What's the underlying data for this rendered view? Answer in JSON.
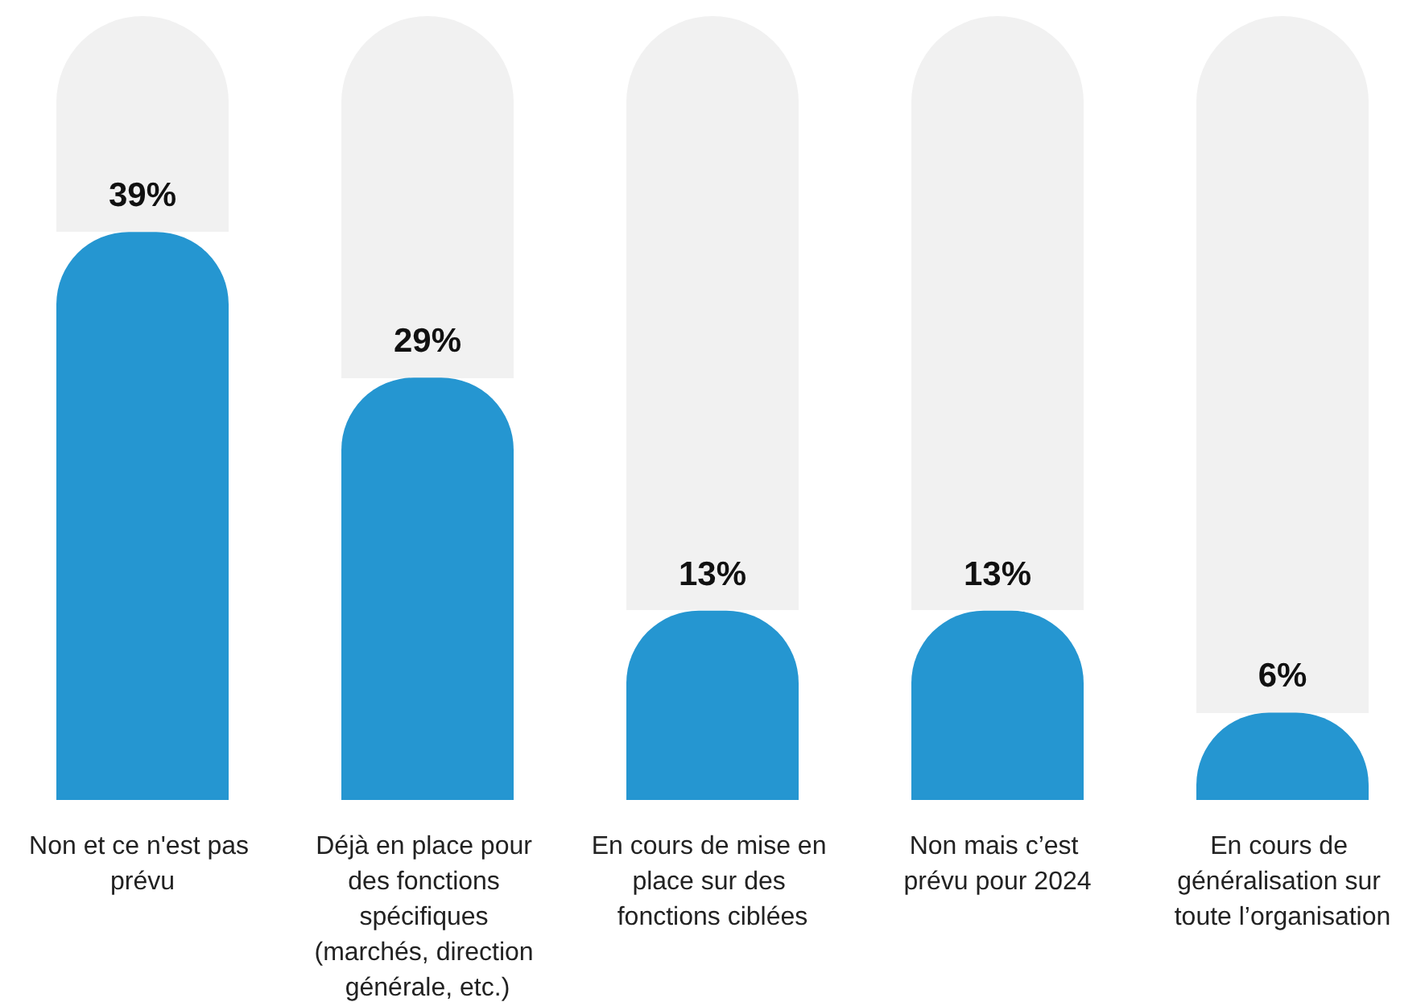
{
  "chart_data": {
    "type": "bar",
    "categories": [
      "Non et ce n'est pas prévu",
      "Déjà en place pour des fonctions spécifiques (marchés, direction générale, etc.)",
      "En cours de mise en place sur des fonctions ciblées",
      "Non mais c’est prévu pour 2024",
      "En cours de généralisation sur toute l’organisation"
    ],
    "values": [
      39,
      29,
      13,
      13,
      6
    ],
    "value_labels": [
      "39%",
      "29%",
      "13%",
      "13%",
      "6%"
    ],
    "color": "#2596d1"
  }
}
